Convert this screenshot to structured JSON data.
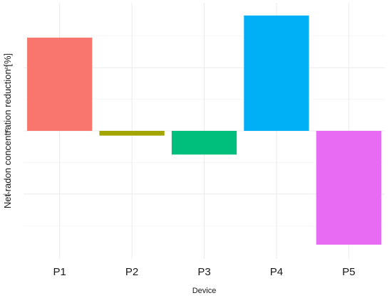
{
  "chart_data": {
    "type": "bar",
    "title": "",
    "xlabel": "Device",
    "ylabel": "Net radon concentration reduction [%]",
    "categories": [
      "P1",
      "P2",
      "P3",
      "P4",
      "P5"
    ],
    "values": [
      5.9,
      -0.3,
      -1.5,
      7.3,
      -7.2
    ],
    "colors": [
      "#F8766D",
      "#A3A500",
      "#00BF7D",
      "#00B0F6",
      "#E76BF3"
    ],
    "yticks": [
      -4,
      0,
      4
    ],
    "ylim": [
      -8.1,
      8.1
    ],
    "grid": true,
    "legend": "none"
  }
}
